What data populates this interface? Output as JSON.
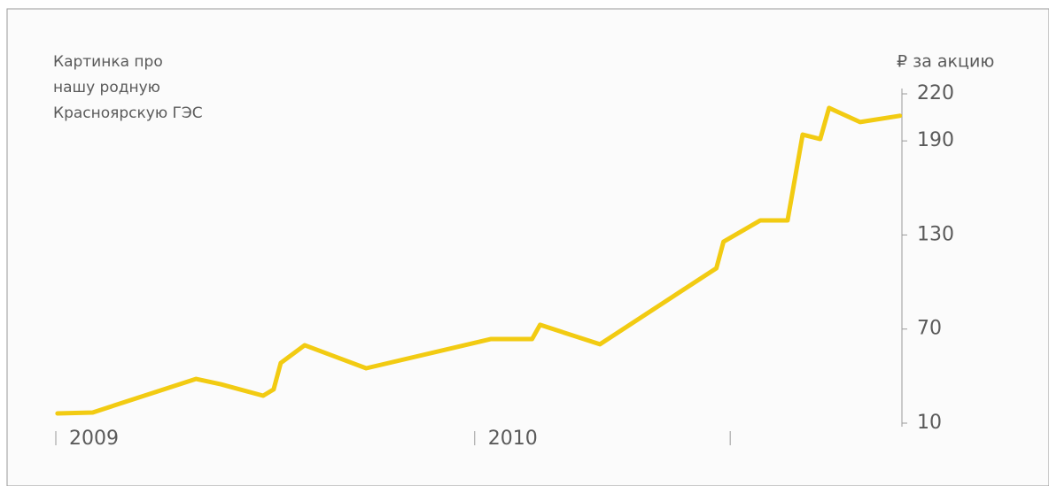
{
  "chart_data": {
    "type": "line",
    "annotation": [
      "Картинка про",
      "нашу родную",
      "Красноярскую ГЭС"
    ],
    "y_label": "₽ за акцию",
    "x": [
      2009.004,
      2009.088,
      2009.335,
      2009.394,
      2009.495,
      2009.52,
      2009.537,
      2009.594,
      2009.741,
      2010.038,
      2010.137,
      2010.156,
      2010.299,
      2010.577,
      2010.594,
      2010.682,
      2010.747,
      2010.783,
      2010.825,
      2010.846,
      2010.92,
      2011.015
    ],
    "series": [
      {
        "color": "#f2cb12",
        "values": [
          16.2,
          16.8,
          38.2,
          34.8,
          27.5,
          31.5,
          48.4,
          59.7,
          45,
          63.6,
          63.6,
          72.7,
          60.3,
          108.8,
          125.7,
          139.3,
          139.3,
          194,
          191.2,
          211,
          202,
          206
        ]
      }
    ],
    "xlim": [
      2009,
      2011.02
    ],
    "xticks": [
      2009,
      2010
    ],
    "minor_xticks": [
      2010.61
    ],
    "ylim": [
      10,
      220
    ],
    "yticks": [
      10,
      70,
      130,
      190,
      220
    ]
  }
}
